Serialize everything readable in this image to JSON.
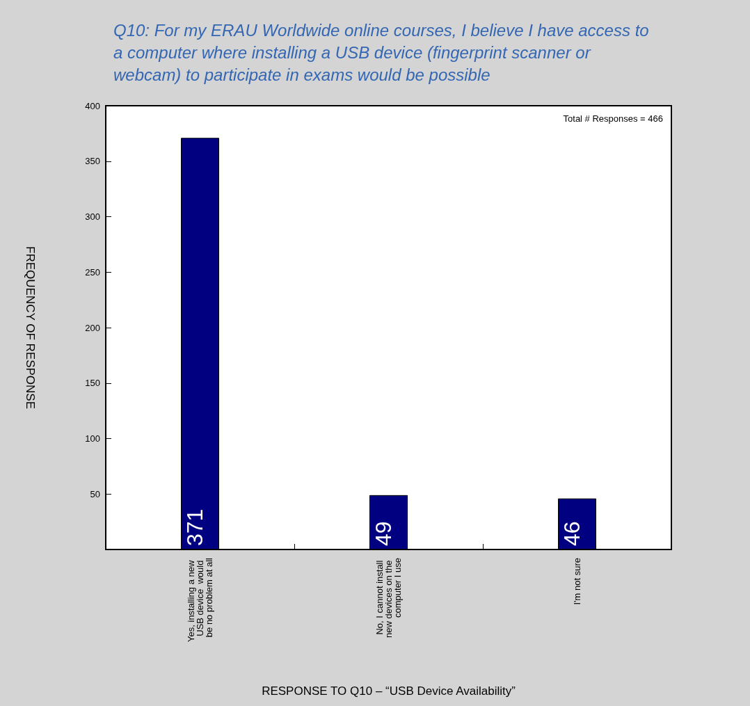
{
  "chart_data": {
    "type": "bar",
    "title": "Q10: For my ERAU Worldwide online courses, I believe I have access to a computer where installing a USB device (fingerprint scanner or webcam) to participate in exams would be possible",
    "xlabel": "RESPONSE TO Q10 – “USB Device Availability”",
    "ylabel": "FREQUENCY OF RESPONSE",
    "annotations": [
      "Total # Responses = 466"
    ],
    "categories": [
      "Yes, installing a new USB device  would be no problem at all",
      "No, I cannot install new devices on the computer I use",
      "I'm not sure"
    ],
    "values": [
      371,
      49,
      46
    ],
    "color": "#000080",
    "ylim": [
      0,
      400
    ],
    "yticks": [
      50,
      100,
      150,
      200,
      250,
      300,
      350,
      400
    ],
    "data_labels": true,
    "grid": false
  }
}
